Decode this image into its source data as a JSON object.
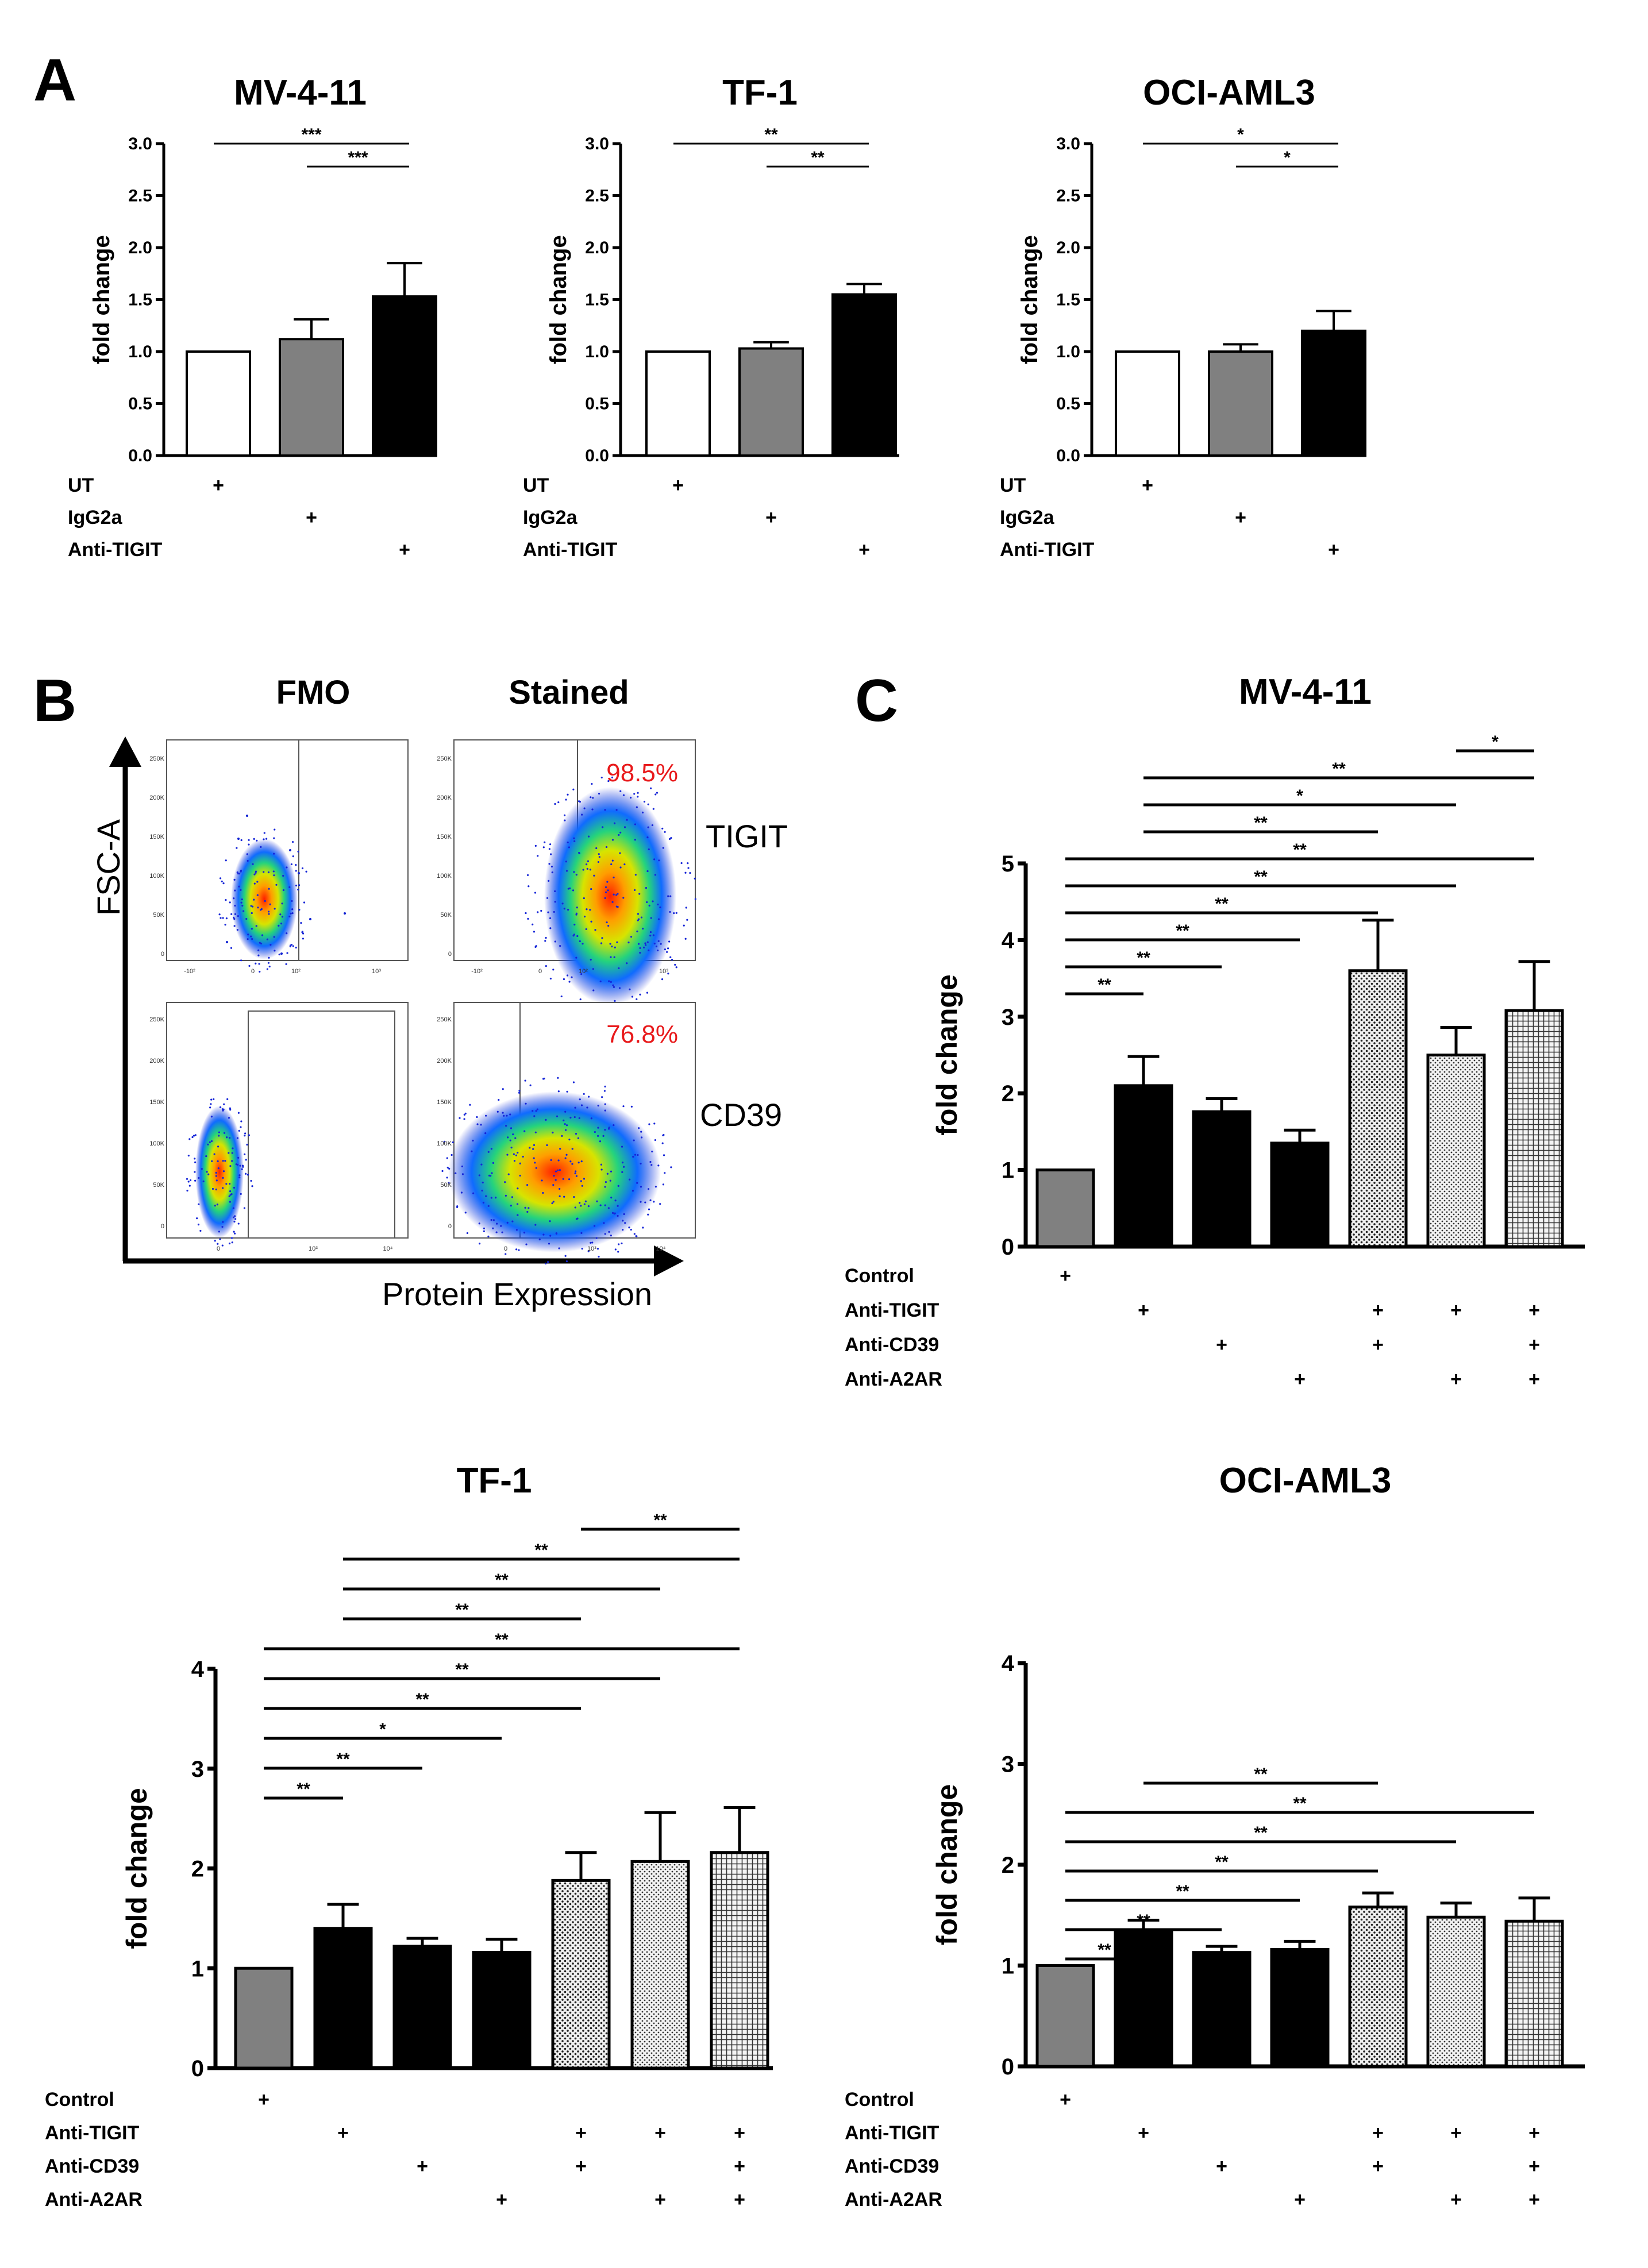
{
  "panels": {
    "A": "A",
    "B": "B",
    "C": "C"
  },
  "colors": {
    "ut": "#ffffff",
    "igg": "#808080",
    "anti": "#000000",
    "control": "#808080",
    "single": "#000000",
    "combo_fill": "#f0f0f0",
    "pct": "#e8191b"
  },
  "chart_data": [
    {
      "id": "A1",
      "type": "bar",
      "title": "MV-4-11",
      "ylabel": "fold change",
      "ylim": [
        0,
        3.0
      ],
      "yticks": [
        "0.0",
        "0.5",
        "1.0",
        "1.5",
        "2.0",
        "2.5",
        "3.0"
      ],
      "categories": [
        "UT",
        "IgG2a",
        "Anti-TIGIT"
      ],
      "values": [
        1.0,
        1.12,
        1.53
      ],
      "errors": [
        0.0,
        0.19,
        0.32
      ],
      "fills": [
        "ut",
        "igg",
        "anti"
      ],
      "treatment_rows": [
        {
          "label": "UT",
          "plus": [
            0
          ]
        },
        {
          "label": "IgG2a",
          "plus": [
            1
          ]
        },
        {
          "label": "Anti-TIGIT",
          "plus": [
            2
          ]
        }
      ],
      "significance": [
        {
          "from": 0,
          "to": 2,
          "label": "***"
        },
        {
          "from": 1,
          "to": 2,
          "label": "***"
        }
      ]
    },
    {
      "id": "A2",
      "type": "bar",
      "title": "TF-1",
      "ylabel": "fold change",
      "ylim": [
        0,
        3.0
      ],
      "yticks": [
        "0.0",
        "0.5",
        "1.0",
        "1.5",
        "2.0",
        "2.5",
        "3.0"
      ],
      "categories": [
        "UT",
        "IgG2a",
        "Anti-TIGIT"
      ],
      "values": [
        1.0,
        1.03,
        1.55
      ],
      "errors": [
        0.0,
        0.06,
        0.1
      ],
      "fills": [
        "ut",
        "igg",
        "anti"
      ],
      "treatment_rows": [
        {
          "label": "UT",
          "plus": [
            0
          ]
        },
        {
          "label": "IgG2a",
          "plus": [
            1
          ]
        },
        {
          "label": "Anti-TIGIT",
          "plus": [
            2
          ]
        }
      ],
      "significance": [
        {
          "from": 0,
          "to": 2,
          "label": "**"
        },
        {
          "from": 1,
          "to": 2,
          "label": "**"
        }
      ]
    },
    {
      "id": "A3",
      "type": "bar",
      "title": "OCI-AML3",
      "ylabel": "fold change",
      "ylim": [
        0,
        3.0
      ],
      "yticks": [
        "0.0",
        "0.5",
        "1.0",
        "1.5",
        "2.0",
        "2.5",
        "3.0"
      ],
      "categories": [
        "UT",
        "IgG2a",
        "Anti-TIGIT"
      ],
      "values": [
        1.0,
        1.0,
        1.2
      ],
      "errors": [
        0.0,
        0.07,
        0.19
      ],
      "fills": [
        "ut",
        "igg",
        "anti"
      ],
      "treatment_rows": [
        {
          "label": "UT",
          "plus": [
            0
          ]
        },
        {
          "label": "IgG2a",
          "plus": [
            1
          ]
        },
        {
          "label": "Anti-TIGIT",
          "plus": [
            2
          ]
        }
      ],
      "significance": [
        {
          "from": 0,
          "to": 2,
          "label": "*"
        },
        {
          "from": 1,
          "to": 2,
          "label": "*"
        }
      ]
    },
    {
      "id": "C1",
      "type": "bar",
      "title": "MV-4-11",
      "ylabel": "fold change",
      "ylim": [
        0,
        5
      ],
      "yticks": [
        "0",
        "1",
        "2",
        "3",
        "4",
        "5"
      ],
      "categories": [
        "Control",
        "Anti-TIGIT",
        "Anti-CD39",
        "Anti-A2AR",
        "Anti-TIGIT + Anti-CD39",
        "Anti-TIGIT + Anti-A2AR",
        "Anti-TIGIT + Anti-CD39 + Anti-A2AR"
      ],
      "values": [
        1.0,
        2.1,
        1.76,
        1.35,
        3.6,
        2.5,
        3.08
      ],
      "errors": [
        0.0,
        0.38,
        0.17,
        0.17,
        0.66,
        0.36,
        0.64
      ],
      "fills": [
        "control",
        "single",
        "single",
        "single",
        "dots",
        "dots2",
        "grid"
      ],
      "treatment_rows": [
        {
          "label": "Control",
          "plus": [
            0
          ]
        },
        {
          "label": "Anti-TIGIT",
          "plus": [
            1,
            4,
            5,
            6
          ]
        },
        {
          "label": "Anti-CD39",
          "plus": [
            2,
            4,
            6
          ]
        },
        {
          "label": "Anti-A2AR",
          "plus": [
            3,
            5,
            6
          ]
        }
      ],
      "significance": [
        {
          "from": 0,
          "to": 1,
          "label": "**"
        },
        {
          "from": 0,
          "to": 2,
          "label": "**"
        },
        {
          "from": 0,
          "to": 3,
          "label": "**"
        },
        {
          "from": 0,
          "to": 4,
          "label": "**"
        },
        {
          "from": 0,
          "to": 5,
          "label": "**"
        },
        {
          "from": 0,
          "to": 6,
          "label": "**"
        },
        {
          "from": 1,
          "to": 4,
          "label": "**"
        },
        {
          "from": 1,
          "to": 5,
          "label": "*"
        },
        {
          "from": 1,
          "to": 6,
          "label": "**"
        },
        {
          "from": 5,
          "to": 6,
          "label": "*"
        }
      ]
    },
    {
      "id": "C2",
      "type": "bar",
      "title": "TF-1",
      "ylabel": "fold change",
      "ylim": [
        0,
        4
      ],
      "yticks": [
        "0",
        "1",
        "2",
        "3",
        "4"
      ],
      "categories": [
        "Control",
        "Anti-TIGIT",
        "Anti-CD39",
        "Anti-A2AR",
        "Anti-TIGIT + Anti-CD39",
        "Anti-TIGIT + Anti-A2AR",
        "Anti-TIGIT + Anti-CD39 + Anti-A2AR"
      ],
      "values": [
        1.0,
        1.4,
        1.22,
        1.16,
        1.88,
        2.07,
        2.16
      ],
      "errors": [
        0.0,
        0.24,
        0.08,
        0.13,
        0.28,
        0.49,
        0.45
      ],
      "fills": [
        "control",
        "single",
        "single",
        "single",
        "dots",
        "dots2",
        "grid"
      ],
      "treatment_rows": [
        {
          "label": "Control",
          "plus": [
            0
          ]
        },
        {
          "label": "Anti-TIGIT",
          "plus": [
            1,
            4,
            5,
            6
          ]
        },
        {
          "label": "Anti-CD39",
          "plus": [
            2,
            4,
            6
          ]
        },
        {
          "label": "Anti-A2AR",
          "plus": [
            3,
            5,
            6
          ]
        }
      ],
      "significance": [
        {
          "from": 0,
          "to": 1,
          "label": "**"
        },
        {
          "from": 0,
          "to": 2,
          "label": "**"
        },
        {
          "from": 0,
          "to": 3,
          "label": "*"
        },
        {
          "from": 0,
          "to": 4,
          "label": "**"
        },
        {
          "from": 0,
          "to": 5,
          "label": "**"
        },
        {
          "from": 0,
          "to": 6,
          "label": "**"
        },
        {
          "from": 1,
          "to": 4,
          "label": "**"
        },
        {
          "from": 1,
          "to": 5,
          "label": "**"
        },
        {
          "from": 1,
          "to": 6,
          "label": "**"
        },
        {
          "from": 4,
          "to": 6,
          "label": "**"
        }
      ]
    },
    {
      "id": "C3",
      "type": "bar",
      "title": "OCI-AML3",
      "ylabel": "fold change",
      "ylim": [
        0,
        4
      ],
      "yticks": [
        "0",
        "1",
        "2",
        "3",
        "4"
      ],
      "categories": [
        "Control",
        "Anti-TIGIT",
        "Anti-CD39",
        "Anti-A2AR",
        "Anti-TIGIT + Anti-CD39",
        "Anti-TIGIT + Anti-A2AR",
        "Anti-TIGIT + Anti-CD39 + Anti-A2AR"
      ],
      "values": [
        1.0,
        1.33,
        1.13,
        1.16,
        1.58,
        1.48,
        1.44
      ],
      "errors": [
        0.0,
        0.12,
        0.06,
        0.08,
        0.14,
        0.14,
        0.23
      ],
      "fills": [
        "control",
        "single",
        "single",
        "single",
        "dots",
        "dots2",
        "grid"
      ],
      "treatment_rows": [
        {
          "label": "Control",
          "plus": [
            0
          ]
        },
        {
          "label": "Anti-TIGIT",
          "plus": [
            1,
            4,
            5,
            6
          ]
        },
        {
          "label": "Anti-CD39",
          "plus": [
            2,
            4,
            6
          ]
        },
        {
          "label": "Anti-A2AR",
          "plus": [
            3,
            5,
            6
          ]
        }
      ],
      "significance": [
        {
          "from": 0,
          "to": 1,
          "label": "**"
        },
        {
          "from": 0,
          "to": 2,
          "label": "**"
        },
        {
          "from": 0,
          "to": 3,
          "label": "**"
        },
        {
          "from": 0,
          "to": 4,
          "label": "**"
        },
        {
          "from": 0,
          "to": 5,
          "label": "**"
        },
        {
          "from": 0,
          "to": 6,
          "label": "**"
        },
        {
          "from": 1,
          "to": 4,
          "label": "**"
        }
      ]
    }
  ],
  "flow": {
    "col_headers": [
      "FMO",
      "Stained"
    ],
    "row_labels": [
      "TIGIT",
      "CD39"
    ],
    "y_axis": "FSC-A",
    "x_axis": "Protein Expression",
    "percentages": [
      "98.5%",
      "76.8%"
    ],
    "yticks": [
      "250K",
      "200K",
      "150K",
      "100K",
      "50K",
      "0"
    ],
    "xticks_tigit": [
      "-10²",
      "0",
      "10²",
      "10³"
    ],
    "xticks_cd39": [
      "0",
      "10³",
      "10⁴"
    ]
  }
}
